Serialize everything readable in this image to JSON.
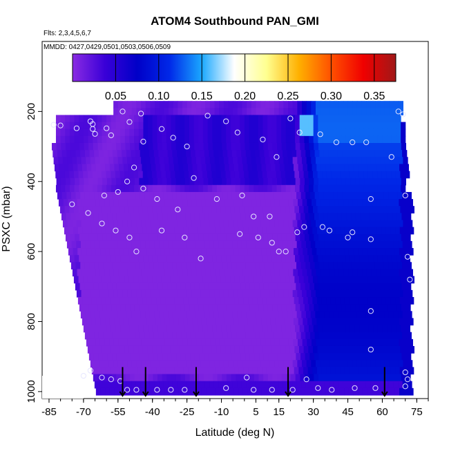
{
  "chart_data": {
    "type": "heatmap",
    "title": "ATOM4 Southbound PAN_GMI",
    "flights_note": "Flts: 2,3,4,5,6,7",
    "dates_note": "MMDD: 0427,0429,0501,0503,0506,0509",
    "xlabel": "Latitude (deg N)",
    "ylabel": "PSXC (mbar)",
    "xlim": [
      -88,
      80
    ],
    "ylim": [
      1020,
      0
    ],
    "x_ticks": [
      -85,
      -70,
      -55,
      -40,
      -25,
      -10,
      5,
      15,
      30,
      45,
      60,
      75
    ],
    "x_tick_labels": [
      "-85",
      "-70",
      "-55",
      "-40",
      "-25",
      "-10",
      "5",
      "15",
      "30",
      "45",
      "60",
      "75"
    ],
    "y_ticks": [
      200,
      400,
      600,
      800,
      1000
    ],
    "y_tick_labels": [
      "200",
      "400",
      "600",
      "800",
      "1000"
    ],
    "colorbar": {
      "min": 0.0,
      "max": 0.375,
      "ticks": [
        0.05,
        0.1,
        0.15,
        0.2,
        0.25,
        0.3,
        0.35
      ],
      "tick_labels": [
        "0.05",
        "0.10",
        "0.15",
        "0.20",
        "0.25",
        "0.30",
        "0.35"
      ],
      "colors": [
        "#8a2be2",
        "#3a00d8",
        "#0000c8",
        "#0028e8",
        "#1aa8ff",
        "#ffffff",
        "#ffff90",
        "#ffb000",
        "#ff5000",
        "#f00000",
        "#a01818"
      ]
    },
    "profile_markers_lat": [
      -53,
      -43,
      -21,
      19,
      61
    ],
    "sample_points": [
      {
        "x": -83,
        "y": 238
      },
      {
        "x": -80,
        "y": 240
      },
      {
        "x": -73,
        "y": 248
      },
      {
        "x": -67,
        "y": 228
      },
      {
        "x": -66,
        "y": 236
      },
      {
        "x": -66,
        "y": 250
      },
      {
        "x": -65,
        "y": 264
      },
      {
        "x": -60,
        "y": 248
      },
      {
        "x": -58,
        "y": 268
      },
      {
        "x": -53,
        "y": 200
      },
      {
        "x": -50,
        "y": 230
      },
      {
        "x": -45,
        "y": 206
      },
      {
        "x": -44,
        "y": 286
      },
      {
        "x": -36,
        "y": 250
      },
      {
        "x": -31,
        "y": 275
      },
      {
        "x": -25,
        "y": 300
      },
      {
        "x": -16,
        "y": 212
      },
      {
        "x": -8,
        "y": 228
      },
      {
        "x": -3,
        "y": 260
      },
      {
        "x": 8,
        "y": 280
      },
      {
        "x": 14,
        "y": 330
      },
      {
        "x": 20,
        "y": 220
      },
      {
        "x": 24,
        "y": 260
      },
      {
        "x": 33,
        "y": 265
      },
      {
        "x": 40,
        "y": 288
      },
      {
        "x": 47,
        "y": 288
      },
      {
        "x": 53,
        "y": 288
      },
      {
        "x": 64,
        "y": 330
      },
      {
        "x": 67,
        "y": 200
      },
      {
        "x": 69,
        "y": 208
      },
      {
        "x": -61,
        "y": 440
      },
      {
        "x": -55,
        "y": 430
      },
      {
        "x": -51,
        "y": 400
      },
      {
        "x": -48,
        "y": 360
      },
      {
        "x": -44,
        "y": 420
      },
      {
        "x": -38,
        "y": 450
      },
      {
        "x": -29,
        "y": 480
      },
      {
        "x": -22,
        "y": 390
      },
      {
        "x": -12,
        "y": 450
      },
      {
        "x": -1,
        "y": 440
      },
      {
        "x": 4,
        "y": 500
      },
      {
        "x": 11,
        "y": 500
      },
      {
        "x": 26,
        "y": 530
      },
      {
        "x": 34,
        "y": 530
      },
      {
        "x": 37,
        "y": 540
      },
      {
        "x": 45,
        "y": 560
      },
      {
        "x": 55,
        "y": 450
      },
      {
        "x": 70,
        "y": 440
      },
      {
        "x": -75,
        "y": 465
      },
      {
        "x": -68,
        "y": 490
      },
      {
        "x": -62,
        "y": 520
      },
      {
        "x": -56,
        "y": 540
      },
      {
        "x": -50,
        "y": 560
      },
      {
        "x": -47,
        "y": 600
      },
      {
        "x": -36,
        "y": 540
      },
      {
        "x": -26,
        "y": 560
      },
      {
        "x": -19,
        "y": 620
      },
      {
        "x": -2,
        "y": 550
      },
      {
        "x": 6,
        "y": 560
      },
      {
        "x": 12,
        "y": 575
      },
      {
        "x": 15,
        "y": 600
      },
      {
        "x": 18,
        "y": 600
      },
      {
        "x": 23,
        "y": 545
      },
      {
        "x": 47,
        "y": 545
      },
      {
        "x": 55,
        "y": 565
      },
      {
        "x": 71,
        "y": 615
      },
      {
        "x": 72,
        "y": 680
      },
      {
        "x": 55,
        "y": 770
      },
      {
        "x": 55,
        "y": 880
      },
      {
        "x": -70,
        "y": 955
      },
      {
        "x": -67,
        "y": 940
      },
      {
        "x": -62,
        "y": 960
      },
      {
        "x": -58,
        "y": 965
      },
      {
        "x": -54,
        "y": 970
      },
      {
        "x": -51,
        "y": 995
      },
      {
        "x": -47,
        "y": 995
      },
      {
        "x": -38,
        "y": 995
      },
      {
        "x": -32,
        "y": 995
      },
      {
        "x": -26,
        "y": 995
      },
      {
        "x": -8,
        "y": 990
      },
      {
        "x": 1,
        "y": 960
      },
      {
        "x": 4,
        "y": 995
      },
      {
        "x": 12,
        "y": 995
      },
      {
        "x": 21,
        "y": 995
      },
      {
        "x": 27,
        "y": 965
      },
      {
        "x": 32,
        "y": 990
      },
      {
        "x": 38,
        "y": 995
      },
      {
        "x": 48,
        "y": 990
      },
      {
        "x": 57,
        "y": 990
      },
      {
        "x": 70,
        "y": 945
      },
      {
        "x": 71,
        "y": 965
      },
      {
        "x": 70,
        "y": 985
      }
    ]
  }
}
